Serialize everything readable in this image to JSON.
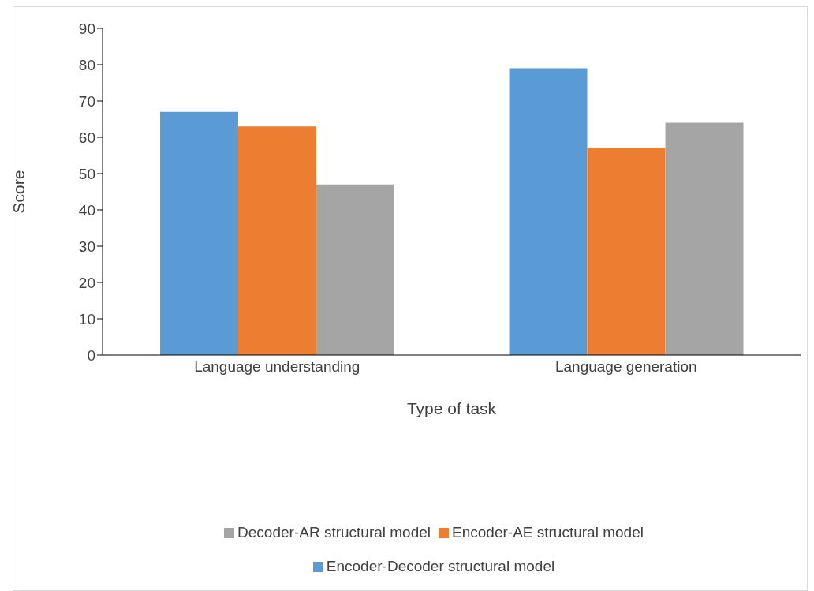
{
  "chart_data": {
    "type": "bar",
    "xlabel": "Type of task",
    "ylabel": "Score",
    "categories": [
      "Language understanding",
      "Language generation"
    ],
    "series": [
      {
        "name": "Encoder-Decoder structural model",
        "color": "#5b9bd5",
        "values": [
          67,
          79
        ]
      },
      {
        "name": "Encoder-AE structural model",
        "color": "#ed7d31",
        "values": [
          63,
          57
        ]
      },
      {
        "name": "Decoder-AR structural model",
        "color": "#a5a5a5",
        "values": [
          47,
          64
        ]
      }
    ],
    "ylim": [
      0,
      90
    ],
    "yticks": [
      0,
      10,
      20,
      30,
      40,
      50,
      60,
      70,
      80,
      90
    ],
    "grid": false,
    "legend": "bottom"
  }
}
